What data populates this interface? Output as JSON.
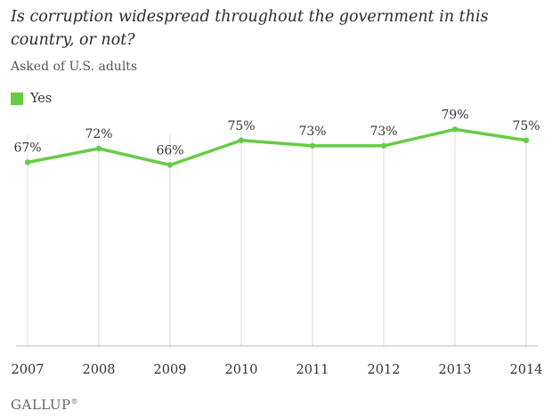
{
  "title": "Is corruption widespread throughout the government in this country, or not?",
  "subtitle": "Asked of U.S. adults",
  "brand": "GALLUP",
  "colors": {
    "series": "#66cc44",
    "grid": "#d9d9d9",
    "axis": "#bbbbbb",
    "text": "#333333"
  },
  "chart_data": {
    "type": "line",
    "x": [
      "2007",
      "2008",
      "2009",
      "2010",
      "2011",
      "2012",
      "2013",
      "2014"
    ],
    "series": [
      {
        "name": "Yes",
        "values": [
          67,
          72,
          66,
          75,
          73,
          73,
          79,
          75
        ]
      }
    ],
    "data_labels": [
      "67%",
      "72%",
      "66%",
      "75%",
      "73%",
      "73%",
      "79%",
      "75%"
    ],
    "ylim": [
      0,
      84
    ],
    "grid": "vertical",
    "legend": "top-left"
  }
}
